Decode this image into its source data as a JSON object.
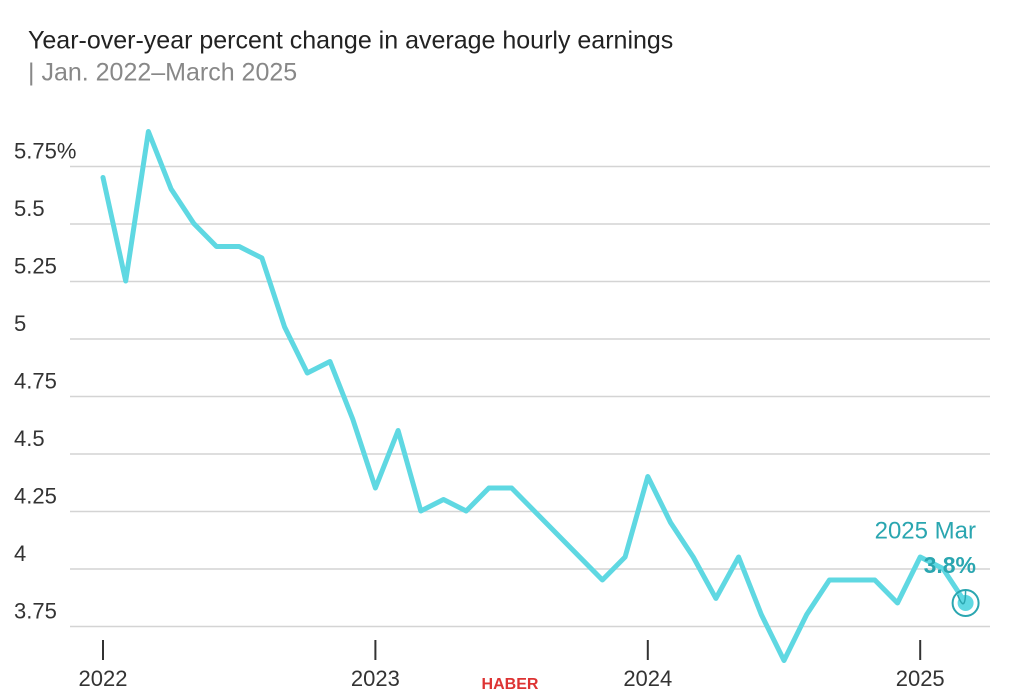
{
  "chart_data": {
    "type": "line",
    "subtitle": "Year-over-year percent change in average hourly earnings",
    "subtitle_range": "| Jan. 2022–March 2025",
    "categories": [
      "2022",
      null,
      null,
      null,
      null,
      null,
      null,
      null,
      null,
      null,
      null,
      null,
      "2023",
      null,
      null,
      null,
      null,
      null,
      null,
      null,
      null,
      null,
      null,
      null,
      "2024",
      null,
      null,
      null,
      null,
      null,
      null,
      null,
      null,
      null,
      null,
      null,
      "2025",
      null,
      null
    ],
    "series": [
      {
        "name": "Average hourly earnings",
        "color": "#5fd8e2",
        "values": [
          5.65,
          5.2,
          5.85,
          5.6,
          5.45,
          5.35,
          5.35,
          5.3,
          5.0,
          4.8,
          4.85,
          4.6,
          4.3,
          4.55,
          4.2,
          4.25,
          4.2,
          4.3,
          4.3,
          4.2,
          4.1,
          4.0,
          3.9,
          4.0,
          4.35,
          4.15,
          4.0,
          3.82,
          4.0,
          3.75,
          3.55,
          3.75,
          3.9,
          3.9,
          3.9,
          3.8,
          4.0,
          3.95,
          3.8
        ]
      }
    ],
    "annotation": {
      "label": "2025 Mar",
      "value_label": "3.8%",
      "color": "#2aa6b0"
    },
    "watermark": "HABER",
    "ylim": [
      3.5,
      5.9
    ],
    "yticks": [
      3.75,
      4,
      4.25,
      4.5,
      4.75,
      5,
      5.25,
      5.5,
      {
        "value": 5.75,
        "label": "5.75%"
      }
    ],
    "grid": true
  }
}
